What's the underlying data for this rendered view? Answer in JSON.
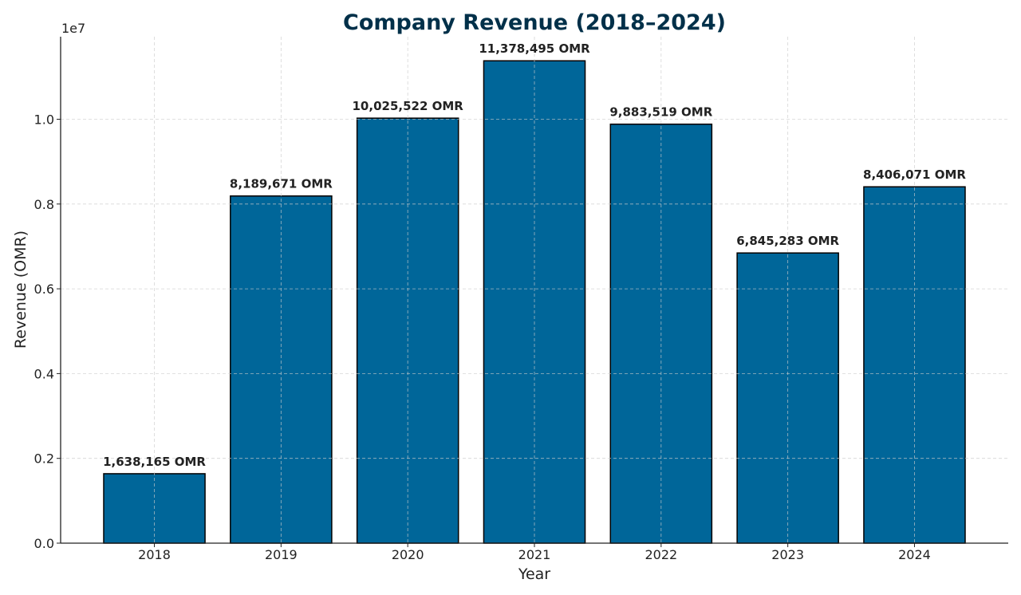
{
  "chart_data": {
    "type": "bar",
    "title": "Company Revenue (2018–2024)",
    "xlabel": "Year",
    "ylabel": "Revenue (OMR)",
    "y_offset_label": "1e7",
    "categories": [
      "2018",
      "2019",
      "2020",
      "2021",
      "2022",
      "2023",
      "2024"
    ],
    "values": [
      1638165,
      8189671,
      10025522,
      11378495,
      9883519,
      6845283,
      8406071
    ],
    "data_labels": [
      "1,638,165 OMR",
      "8,189,671 OMR",
      "10,025,522 OMR",
      "11,378,495 OMR",
      "9,883,519 OMR",
      "6,845,283 OMR",
      "8,406,071 OMR"
    ],
    "yticks": [
      0,
      2000000,
      4000000,
      6000000,
      8000000,
      10000000
    ],
    "ytick_labels": [
      "0.0",
      "0.2",
      "0.4",
      "0.6",
      "0.8",
      "1.0"
    ],
    "ylim": [
      0,
      11947420
    ],
    "grid": true,
    "colors": {
      "bar": "#006699",
      "edge": "#000000",
      "title": "#003049",
      "grid": "#cccccc"
    }
  }
}
